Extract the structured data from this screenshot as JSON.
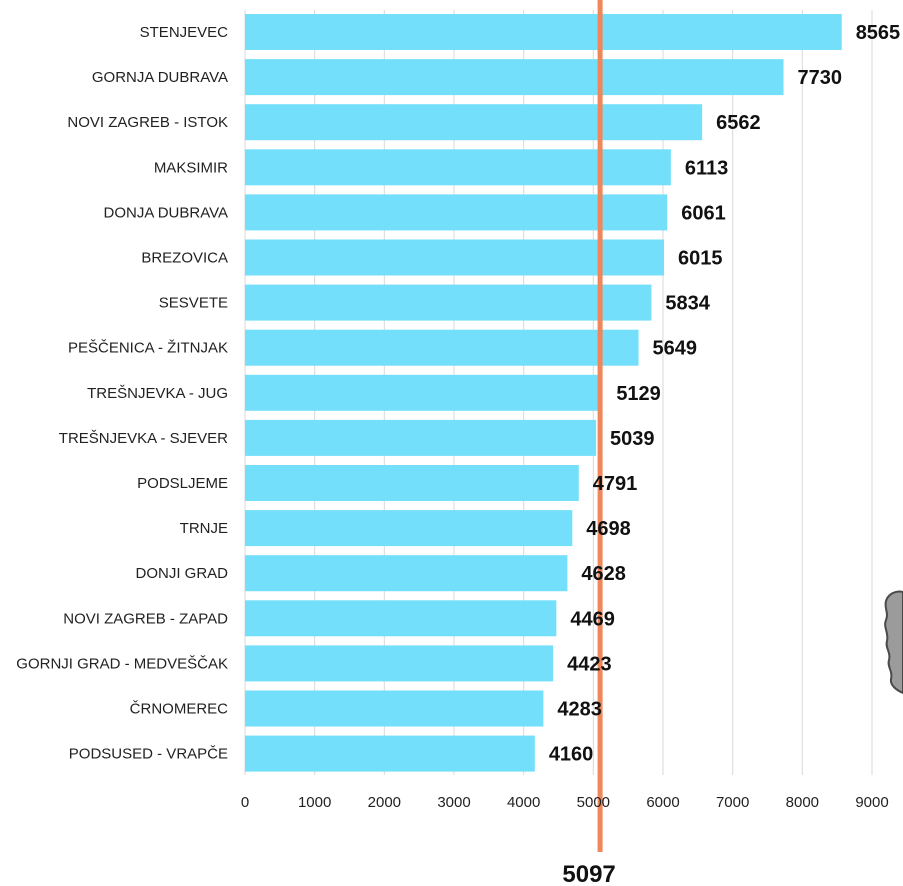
{
  "colors": {
    "bar": "#73dffb",
    "reference_line": "#f0875a",
    "grid": "#d9d9d9",
    "map_fill": "#9b9b9b",
    "map_stroke": "#4a4a4a"
  },
  "chart_data": {
    "type": "bar",
    "orientation": "horizontal",
    "categories": [
      "STENJEVEC",
      "GORNJA DUBRAVA",
      "NOVI ZAGREB - ISTOK",
      "MAKSIMIR",
      "DONJA DUBRAVA",
      "BREZOVICA",
      "SESVETE",
      "PEŠČENICA - ŽITNJAK",
      "TREŠNJEVKA - JUG",
      "TREŠNJEVKA - SJEVER",
      "PODSLJEME",
      "TRNJE",
      "DONJI GRAD",
      "NOVI ZAGREB - ZAPAD",
      "GORNJI GRAD - MEDVEŠČAK",
      "ČRNOMEREC",
      "PODSUSED - VRAPČE"
    ],
    "values": [
      8565,
      7730,
      6562,
      6113,
      6061,
      6015,
      5834,
      5649,
      5129,
      5039,
      4791,
      4698,
      4628,
      4469,
      4423,
      4283,
      4160
    ],
    "value_labels": [
      "8565",
      "7730",
      "6562",
      "6113",
      "6061",
      "6015",
      "5834",
      "5649",
      "5129",
      "5039",
      "4791",
      "4698",
      "4628",
      "4469",
      "4423",
      "4283",
      "4160"
    ],
    "x_ticks": [
      "0",
      "1000",
      "2000",
      "3000",
      "4000",
      "5000",
      "6000",
      "7000",
      "8000",
      "9000"
    ],
    "xlim": [
      0,
      9000
    ],
    "reference_line": {
      "value": 5097,
      "label": "5097"
    },
    "title": "",
    "xlabel": "",
    "ylabel": "",
    "grid": "vertical",
    "legend": "none"
  }
}
